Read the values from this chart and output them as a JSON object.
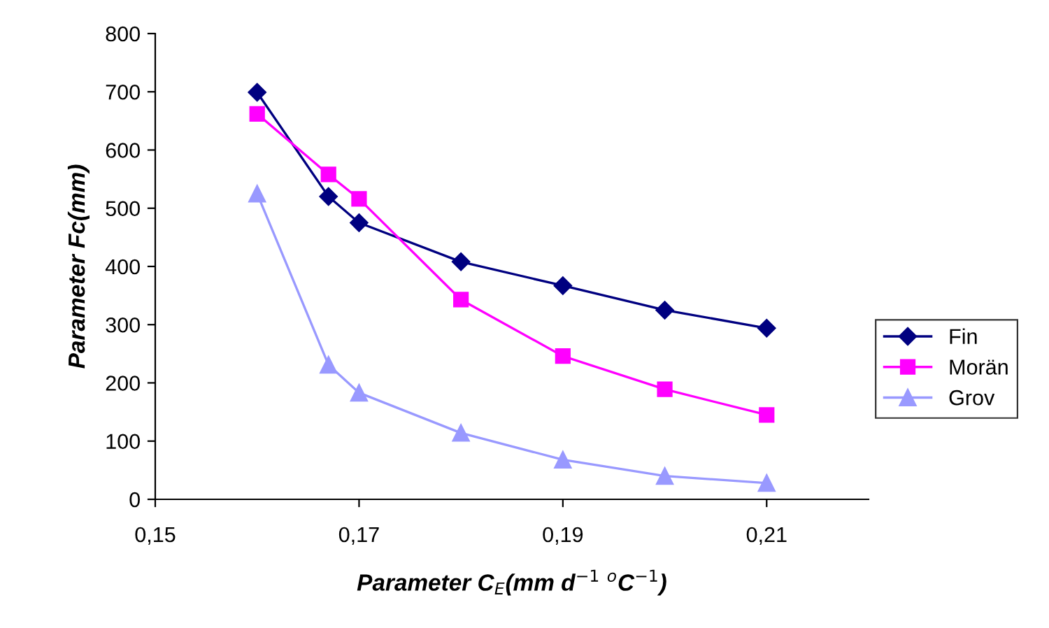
{
  "chart_data": {
    "type": "line",
    "xlabel": "Parameter C$_{E}$(mm d$^{−1}$ $^{o}$C$^{−1}$)",
    "ylabel": "Parameter Fc(mm)",
    "xlim": [
      0.15,
      0.22
    ],
    "xticks": [
      {
        "value": 0.15,
        "label": "0,15"
      },
      {
        "value": 0.17,
        "label": "0,17"
      },
      {
        "value": 0.19,
        "label": "0,19"
      },
      {
        "value": 0.21,
        "label": "0,21"
      }
    ],
    "ylim": [
      0,
      800
    ],
    "yticks": [
      0,
      100,
      200,
      300,
      400,
      500,
      600,
      700,
      800
    ],
    "x": [
      0.16,
      0.167,
      0.17,
      0.18,
      0.19,
      0.2,
      0.21
    ],
    "series": [
      {
        "name": "Fin",
        "color": "#000080",
        "marker": "diamond",
        "values": [
          699,
          520,
          475,
          408,
          367,
          325,
          294
        ]
      },
      {
        "name": "Morän",
        "color": "#ff00ff",
        "marker": "square",
        "values": [
          662,
          558,
          516,
          343,
          246,
          189,
          145
        ]
      },
      {
        "name": "Grov",
        "color": "#9999ff",
        "marker": "triangle",
        "values": [
          525,
          231,
          183,
          114,
          68,
          40,
          28
        ]
      }
    ],
    "grid": false,
    "legend": "right"
  }
}
